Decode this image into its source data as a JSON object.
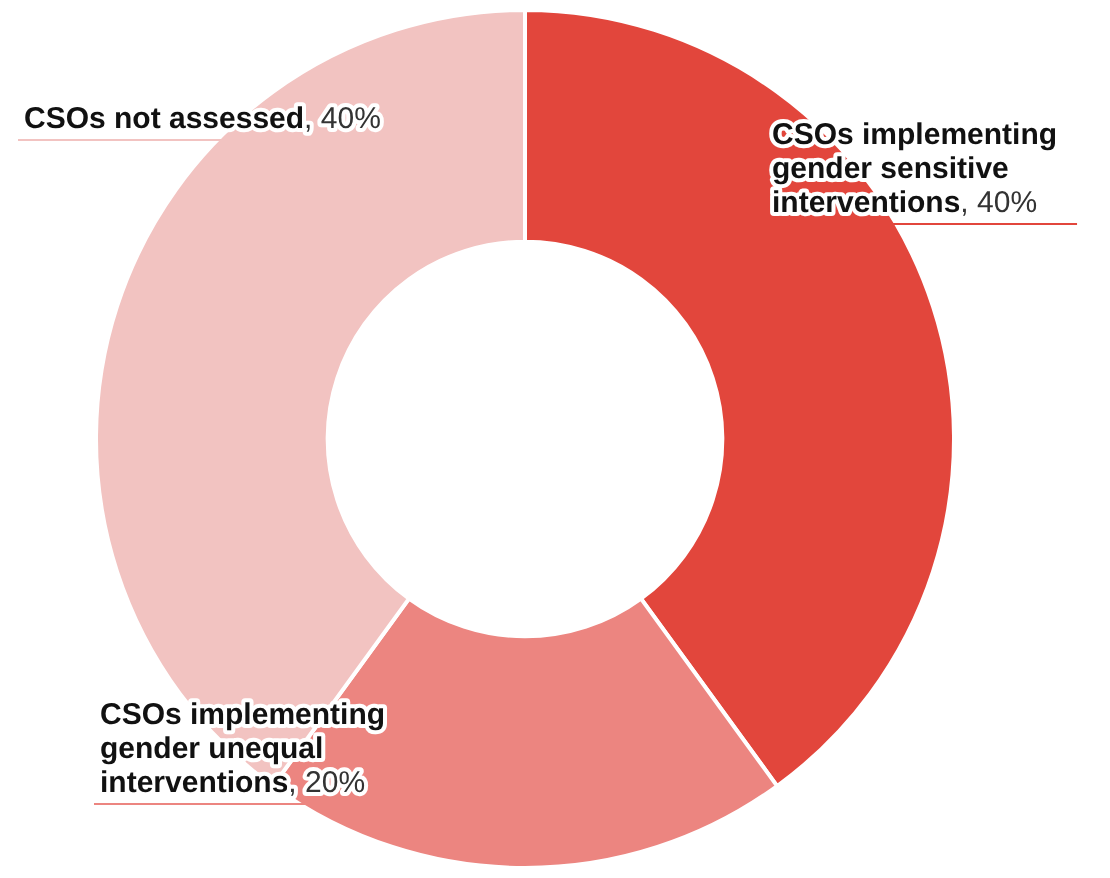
{
  "chart_data": {
    "type": "donut",
    "categories": [
      "CSOs implementing gender sensitive interventions",
      "CSOs implementing gender unequal interventions",
      "CSOs not assessed"
    ],
    "values": [
      40,
      20,
      40
    ],
    "colors": [
      "#e2463c",
      "#ec8580",
      "#f2c3c1"
    ],
    "value_labels": [
      ", 40%",
      ", 20%",
      ", 40%"
    ],
    "legend": false
  }
}
